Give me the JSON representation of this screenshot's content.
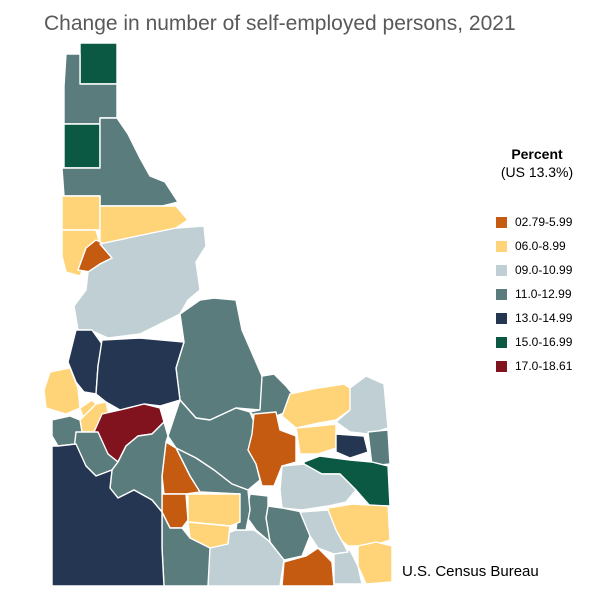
{
  "title": "Change in number of self-employed persons, 2021",
  "legend": {
    "title": "Percent",
    "subtitle": "(US 13.3%)",
    "items": [
      {
        "label": "02.79-5.99",
        "color": "#c55a11"
      },
      {
        "label": "06.0-8.99",
        "color": "#ffd479"
      },
      {
        "label": "09.0-10.99",
        "color": "#bfcfd3"
      },
      {
        "label": "11.0-12.99",
        "color": "#5b7c7c"
      },
      {
        "label": "13.0-14.99",
        "color": "#243651"
      },
      {
        "label": "15.0-16.99",
        "color": "#0b5943"
      },
      {
        "label": "17.0-18.61",
        "color": "#80131e"
      }
    ]
  },
  "source": "U.S. Census Bureau"
}
